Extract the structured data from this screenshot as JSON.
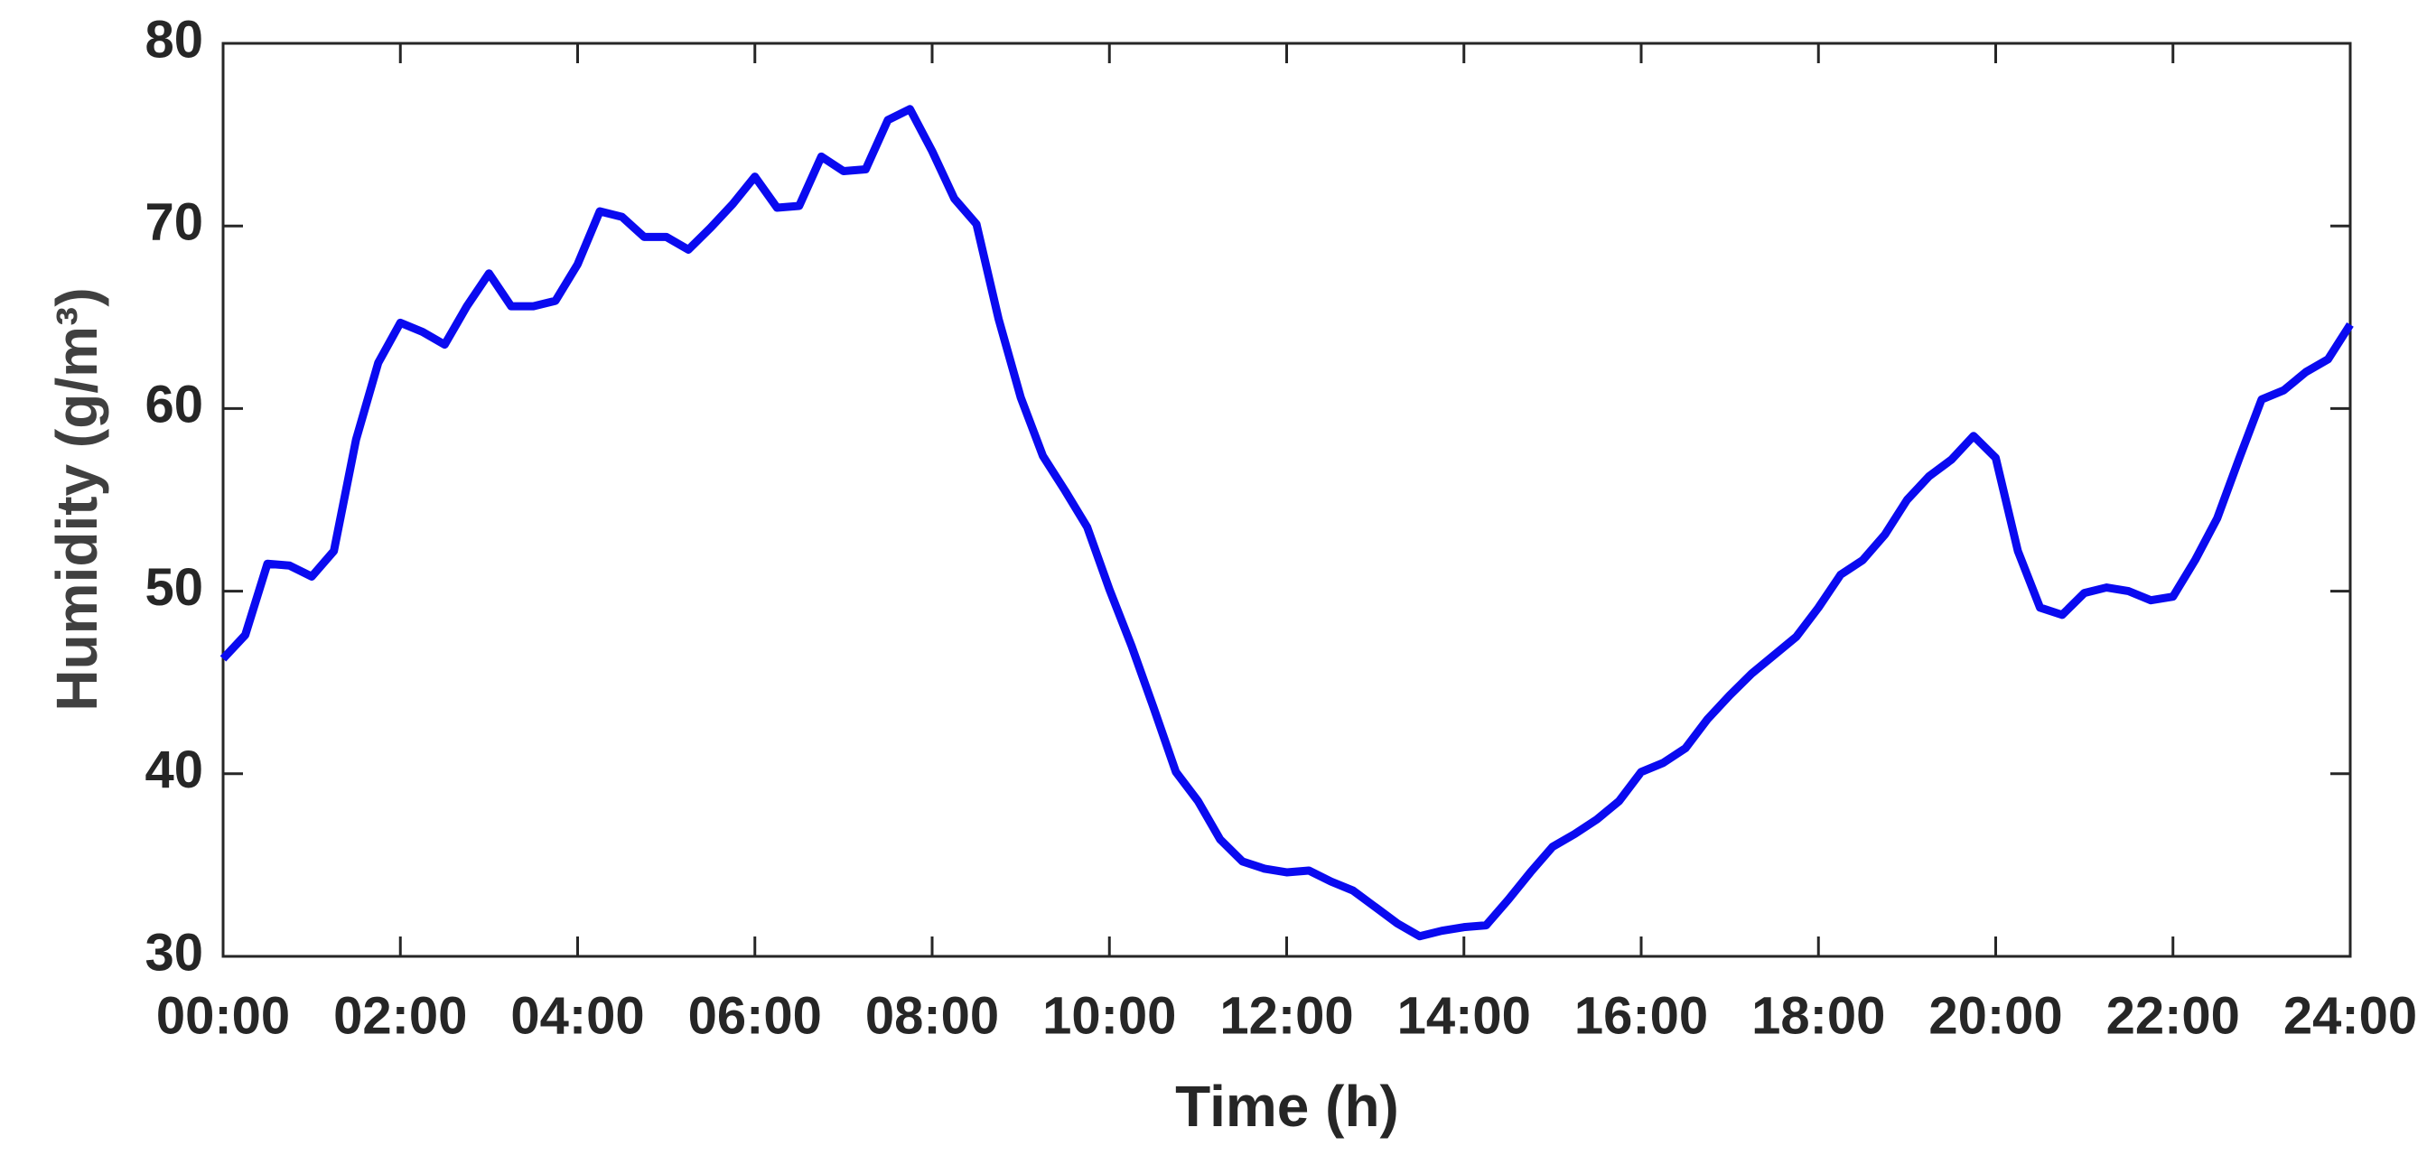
{
  "chart_data": {
    "type": "line",
    "x_label": "Time (h)",
    "y_label": "Humidity (g/m³)",
    "x": [
      0,
      0.25,
      0.5,
      0.75,
      1,
      1.25,
      1.5,
      1.75,
      2,
      2.25,
      2.5,
      2.75,
      3,
      3.25,
      3.5,
      3.75,
      4,
      4.25,
      4.5,
      4.75,
      5,
      5.25,
      5.5,
      5.75,
      6,
      6.25,
      6.5,
      6.75,
      7,
      7.25,
      7.5,
      7.75,
      8,
      8.25,
      8.5,
      8.75,
      9,
      9.25,
      9.5,
      9.75,
      10,
      10.25,
      10.5,
      10.75,
      11,
      11.25,
      11.5,
      11.75,
      12,
      12.25,
      12.5,
      12.75,
      13,
      13.25,
      13.5,
      13.75,
      14,
      14.25,
      14.5,
      14.75,
      15,
      15.25,
      15.5,
      15.75,
      16,
      16.25,
      16.5,
      16.75,
      17,
      17.25,
      17.5,
      17.75,
      18,
      18.25,
      18.5,
      18.75,
      19,
      19.25,
      19.5,
      19.75,
      20,
      20.25,
      20.5,
      20.75,
      21,
      21.25,
      21.5,
      21.75,
      22,
      22.25,
      22.5,
      22.75,
      23,
      23.25,
      23.5,
      23.75,
      24
    ],
    "series": [
      {
        "name": "Humidity",
        "color": "#0a0af0",
        "values": [
          46.3,
          47.6,
          51.5,
          51.4,
          50.8,
          52.2,
          58.3,
          62.5,
          64.7,
          64.2,
          63.5,
          65.6,
          67.4,
          65.6,
          65.6,
          65.9,
          67.9,
          70.8,
          70.5,
          69.4,
          69.4,
          68.7,
          69.9,
          71.2,
          72.7,
          71.0,
          71.1,
          73.8,
          73.0,
          73.1,
          75.8,
          76.4,
          74.1,
          71.5,
          70.1,
          64.9,
          60.6,
          57.4,
          55.5,
          53.5,
          50.1,
          47.0,
          43.6,
          40.1,
          38.5,
          36.4,
          35.2,
          34.8,
          34.6,
          34.7,
          34.1,
          33.6,
          32.7,
          31.8,
          31.1,
          31.4,
          31.6,
          31.7,
          33.1,
          34.6,
          36.0,
          36.7,
          37.5,
          38.5,
          40.1,
          40.6,
          41.4,
          43.0,
          44.3,
          45.5,
          46.5,
          47.5,
          49.1,
          50.9,
          51.7,
          53.1,
          55.0,
          56.3,
          57.2,
          58.5,
          57.3,
          52.2,
          49.1,
          48.7,
          49.9,
          50.2,
          50.0,
          49.5,
          49.7,
          51.7,
          54.0,
          57.3,
          60.5,
          61.0,
          62.0,
          62.7,
          64.6
        ]
      }
    ],
    "xlim": [
      0,
      24
    ],
    "xticks": [
      {
        "value": 0,
        "label": "00:00"
      },
      {
        "value": 2,
        "label": "02:00"
      },
      {
        "value": 4,
        "label": "04:00"
      },
      {
        "value": 6,
        "label": "06:00"
      },
      {
        "value": 8,
        "label": "08:00"
      },
      {
        "value": 10,
        "label": "10:00"
      },
      {
        "value": 12,
        "label": "12:00"
      },
      {
        "value": 14,
        "label": "14:00"
      },
      {
        "value": 16,
        "label": "16:00"
      },
      {
        "value": 18,
        "label": "18:00"
      },
      {
        "value": 20,
        "label": "20:00"
      },
      {
        "value": 22,
        "label": "22:00"
      },
      {
        "value": 24,
        "label": "24:00"
      }
    ],
    "ylim": [
      30,
      80
    ],
    "yticks": [
      30,
      40,
      50,
      60,
      70,
      80
    ],
    "grid": false
  }
}
